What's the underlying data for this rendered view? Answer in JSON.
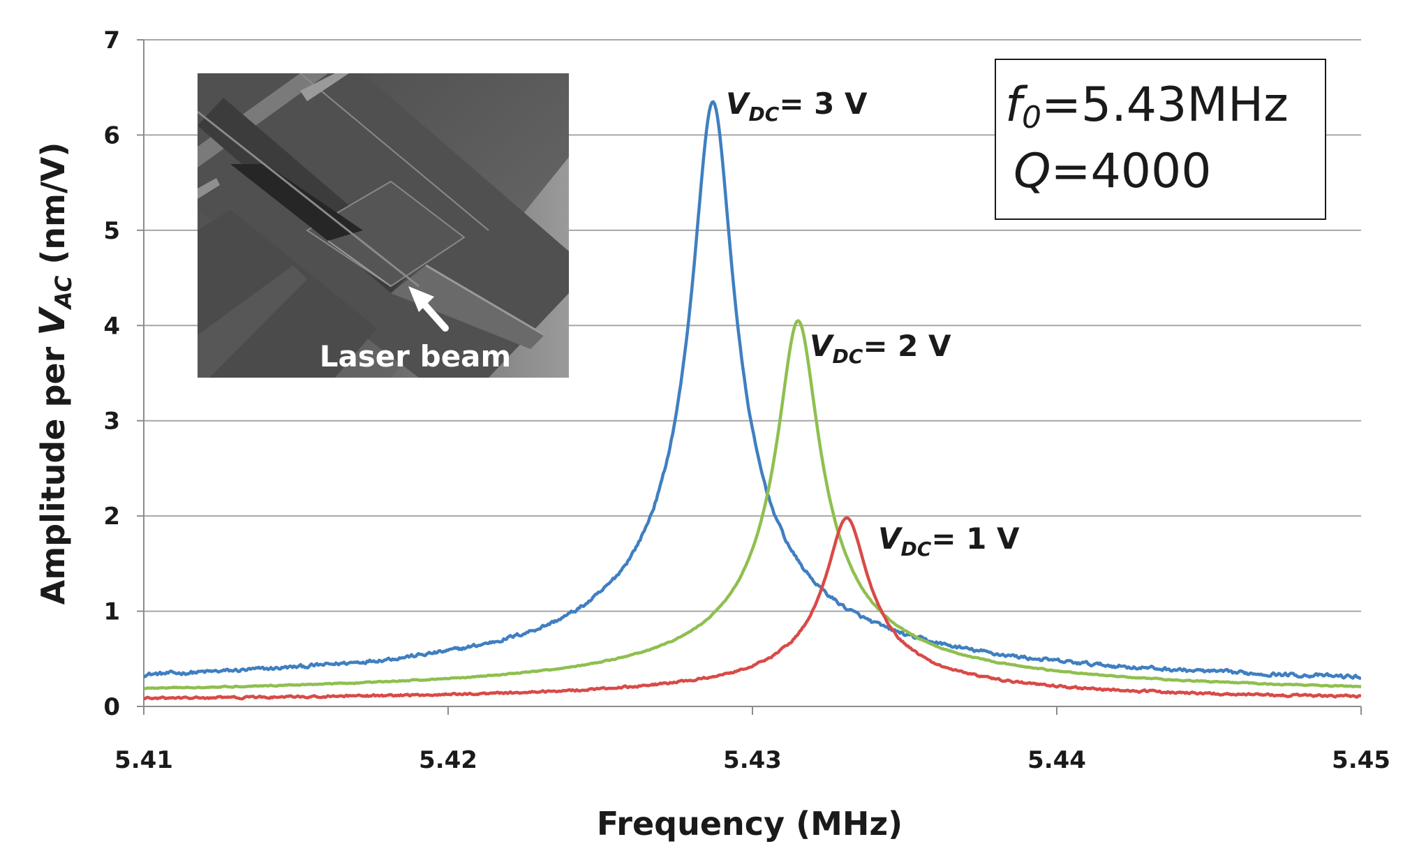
{
  "chart_data": {
    "type": "line",
    "title": "",
    "xlabel": "Frequency (MHz)",
    "ylabel": {
      "prefix": "Amplitude per ",
      "var": "V",
      "sub": "AC",
      "suffix": " (nm/V)"
    },
    "xlim": [
      5.41,
      5.45
    ],
    "ylim": [
      0,
      7
    ],
    "x_ticks": [
      "5.41",
      "5.42",
      "5.43",
      "5.44",
      "5.45"
    ],
    "y_ticks": [
      "0",
      "1",
      "2",
      "3",
      "4",
      "5",
      "6",
      "7"
    ],
    "grid": "horizontal",
    "series": [
      {
        "color": "#3f7fc1",
        "f0": 5.4287,
        "peak": 6.35,
        "hwhm": 0.00065,
        "baseline": 0.12,
        "noise": 0.035,
        "points": [
          [
            5.41,
            0.23
          ],
          [
            5.414,
            0.27
          ],
          [
            5.418,
            0.37
          ],
          [
            5.42,
            0.48
          ],
          [
            5.422,
            0.6
          ],
          [
            5.424,
            0.95
          ],
          [
            5.426,
            1.6
          ],
          [
            5.427,
            2.6
          ],
          [
            5.428,
            5.0
          ],
          [
            5.4287,
            6.35
          ],
          [
            5.43,
            3.0
          ],
          [
            5.431,
            2.1
          ],
          [
            5.432,
            1.5
          ],
          [
            5.434,
            0.85
          ],
          [
            5.436,
            0.55
          ],
          [
            5.44,
            0.32
          ],
          [
            5.445,
            0.22
          ],
          [
            5.45,
            0.16
          ]
        ],
        "label": {
          "var": "V",
          "sub": "DC",
          "text": "= 3 V"
        }
      },
      {
        "color": "#8fbf4f",
        "f0": 5.4315,
        "peak": 4.05,
        "hwhm": 0.00065,
        "baseline": 0.07,
        "noise": 0.01,
        "points": [
          [
            5.41,
            0.13
          ],
          [
            5.416,
            0.2
          ],
          [
            5.42,
            0.25
          ],
          [
            5.424,
            0.37
          ],
          [
            5.427,
            0.6
          ],
          [
            5.429,
            1.0
          ],
          [
            5.43,
            1.7
          ],
          [
            5.431,
            3.2
          ],
          [
            5.4315,
            4.05
          ],
          [
            5.432,
            3.6
          ],
          [
            5.433,
            2.0
          ],
          [
            5.434,
            1.1
          ],
          [
            5.436,
            0.55
          ],
          [
            5.44,
            0.28
          ],
          [
            5.445,
            0.17
          ],
          [
            5.45,
            0.12
          ]
        ],
        "label": {
          "var": "V",
          "sub": "DC",
          "text": "= 2 V"
        }
      },
      {
        "color": "#d94a47",
        "f0": 5.4331,
        "peak": 1.98,
        "hwhm": 0.00065,
        "baseline": 0.03,
        "noise": 0.02,
        "points": [
          [
            5.41,
            0.05
          ],
          [
            5.416,
            0.08
          ],
          [
            5.422,
            0.12
          ],
          [
            5.426,
            0.2
          ],
          [
            5.429,
            0.32
          ],
          [
            5.431,
            0.55
          ],
          [
            5.432,
            0.9
          ],
          [
            5.4331,
            1.98
          ],
          [
            5.434,
            1.3
          ],
          [
            5.435,
            0.65
          ],
          [
            5.437,
            0.35
          ],
          [
            5.44,
            0.2
          ],
          [
            5.445,
            0.12
          ],
          [
            5.45,
            0.09
          ]
        ],
        "label": {
          "var": "V",
          "sub": "DC",
          "text": "= 1 V"
        }
      }
    ],
    "annotations": {
      "params_box": {
        "f0_var": "f",
        "f0_sub": "0",
        "f0_text": "=5.43MHz",
        "q_var": "Q",
        "q_text": "=4000"
      },
      "inset": {
        "caption": "Laser beam"
      }
    }
  }
}
